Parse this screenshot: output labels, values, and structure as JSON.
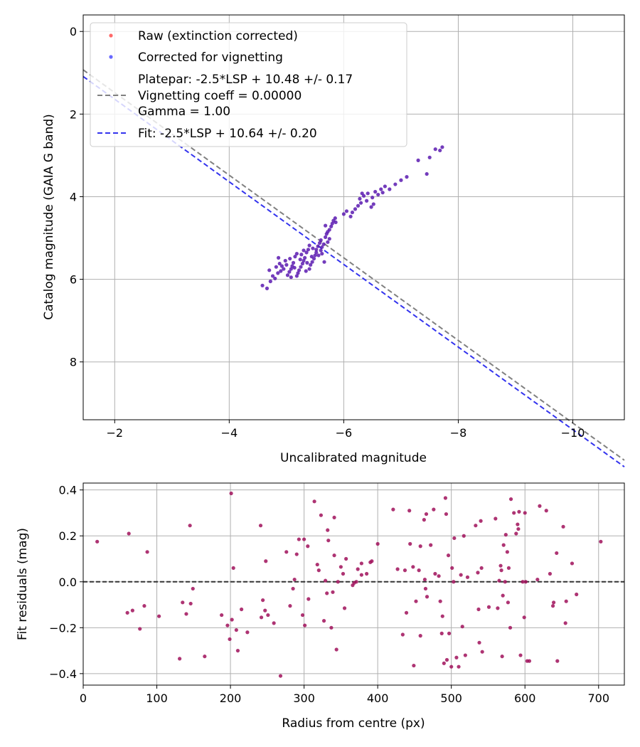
{
  "chart_data": [
    {
      "type": "scatter",
      "xlabel": "Uncalibrated magnitude",
      "ylabel": "Catalog magnitude (GAIA G band)",
      "xlim": [
        -1.45,
        -10.9
      ],
      "ylim": [
        9.4,
        -0.4
      ],
      "x_ticks": [
        -2,
        -4,
        -6,
        -8,
        -10
      ],
      "x_tick_labels": [
        "−2",
        "−4",
        "−6",
        "−8",
        "−10"
      ],
      "y_ticks": [
        0,
        2,
        4,
        6,
        8
      ],
      "y_tick_labels": [
        "0",
        "2",
        "4",
        "6",
        "8"
      ],
      "grid": true,
      "legend": {
        "placement": "top-left",
        "entries": [
          {
            "label": "Raw (extinction corrected)",
            "color": "#ff4d4d",
            "marker": "dot"
          },
          {
            "label": "Corrected for vignetting",
            "color": "#4d4dff",
            "marker": "dot"
          },
          {
            "label": [
              "Platepar: -2.5*LSP + 10.48 +/- 0.17",
              "Vignetting coeff = 0.00000",
              "Gamma = 1.00"
            ],
            "color": "#808080",
            "marker": "dashed-line"
          },
          {
            "label": "Fit: -2.5*LSP + 10.64 +/- 0.20",
            "color": "#3333ee",
            "marker": "dashed-line"
          }
        ]
      },
      "lines": [
        {
          "name": "platepar",
          "slope": -1,
          "intercept": -0.52,
          "color": "#808080"
        },
        {
          "name": "fit",
          "slope": -1,
          "intercept": -0.36,
          "color": "#3333ee"
        }
      ],
      "point_color": "#5a1ab0",
      "points": [
        [
          -4.66,
          6.22
        ],
        [
          -4.58,
          6.15
        ],
        [
          -4.72,
          6.05
        ],
        [
          -4.8,
          5.98
        ],
        [
          -4.76,
          5.92
        ],
        [
          -4.85,
          5.85
        ],
        [
          -4.9,
          5.8
        ],
        [
          -4.95,
          5.75
        ],
        [
          -4.82,
          5.7
        ],
        [
          -4.88,
          5.62
        ],
        [
          -4.98,
          5.55
        ],
        [
          -5.02,
          5.9
        ],
        [
          -5.05,
          5.82
        ],
        [
          -5.08,
          5.75
        ],
        [
          -5.1,
          5.68
        ],
        [
          -5.12,
          5.6
        ],
        [
          -5.06,
          5.5
        ],
        [
          -5.15,
          5.45
        ],
        [
          -5.18,
          5.38
        ],
        [
          -5.2,
          5.85
        ],
        [
          -5.22,
          5.78
        ],
        [
          -5.25,
          5.7
        ],
        [
          -5.28,
          5.62
        ],
        [
          -5.3,
          5.55
        ],
        [
          -5.32,
          5.48
        ],
        [
          -5.26,
          5.4
        ],
        [
          -5.35,
          5.35
        ],
        [
          -5.38,
          5.28
        ],
        [
          -5.4,
          5.75
        ],
        [
          -5.42,
          5.65
        ],
        [
          -5.45,
          5.58
        ],
        [
          -5.48,
          5.5
        ],
        [
          -5.5,
          5.42
        ],
        [
          -5.52,
          5.35
        ],
        [
          -5.46,
          5.25
        ],
        [
          -5.55,
          5.2
        ],
        [
          -5.58,
          5.12
        ],
        [
          -5.6,
          5.3
        ],
        [
          -5.62,
          5.22
        ],
        [
          -5.65,
          5.15
        ],
        [
          -5.6,
          5.05
        ],
        [
          -5.68,
          4.98
        ],
        [
          -5.7,
          4.9
        ],
        [
          -5.72,
          4.85
        ],
        [
          -5.75,
          4.8
        ],
        [
          -5.78,
          4.72
        ],
        [
          -5.8,
          4.65
        ],
        [
          -5.82,
          4.58
        ],
        [
          -5.68,
          4.7
        ],
        [
          -5.85,
          4.52
        ],
        [
          -6.0,
          4.42
        ],
        [
          -6.05,
          4.35
        ],
        [
          -6.12,
          4.48
        ],
        [
          -6.2,
          4.3
        ],
        [
          -6.25,
          4.22
        ],
        [
          -6.3,
          4.15
        ],
        [
          -6.28,
          4.05
        ],
        [
          -6.35,
          3.98
        ],
        [
          -6.4,
          4.1
        ],
        [
          -6.42,
          3.92
        ],
        [
          -6.48,
          4.25
        ],
        [
          -6.52,
          4.18
        ],
        [
          -6.55,
          3.88
        ],
        [
          -6.6,
          3.95
        ],
        [
          -6.65,
          3.82
        ],
        [
          -6.72,
          3.75
        ],
        [
          -6.8,
          3.82
        ],
        [
          -6.9,
          3.7
        ],
        [
          -7.0,
          3.6
        ],
        [
          -7.1,
          3.52
        ],
        [
          -7.3,
          3.12
        ],
        [
          -7.45,
          3.45
        ],
        [
          -7.5,
          3.05
        ],
        [
          -7.6,
          2.85
        ],
        [
          -7.68,
          2.88
        ],
        [
          -7.72,
          2.8
        ],
        [
          -5.0,
          5.65
        ],
        [
          -5.14,
          5.72
        ],
        [
          -5.36,
          5.6
        ],
        [
          -4.92,
          5.68
        ],
        [
          -5.44,
          5.45
        ],
        [
          -5.56,
          5.42
        ],
        [
          -5.24,
          5.52
        ],
        [
          -5.18,
          5.92
        ],
        [
          -5.34,
          5.8
        ],
        [
          -5.08,
          5.95
        ],
        [
          -4.7,
          5.78
        ],
        [
          -5.62,
          5.38
        ],
        [
          -5.72,
          5.1
        ],
        [
          -5.52,
          5.28
        ],
        [
          -5.4,
          5.18
        ],
        [
          -5.3,
          5.3
        ],
        [
          -4.86,
          5.48
        ],
        [
          -5.66,
          5.58
        ],
        [
          -5.75,
          5.02
        ],
        [
          -5.86,
          4.62
        ],
        [
          -6.15,
          4.38
        ],
        [
          -6.32,
          3.92
        ],
        [
          -6.5,
          4.02
        ],
        [
          -6.68,
          3.9
        ]
      ]
    },
    {
      "type": "scatter",
      "xlabel": "Radius from centre (px)",
      "ylabel": "Fit residuals (mag)",
      "xlim": [
        0,
        735
      ],
      "ylim": [
        -0.45,
        0.43
      ],
      "x_ticks": [
        0,
        100,
        200,
        300,
        400,
        500,
        600,
        700
      ],
      "x_tick_labels": [
        "0",
        "100",
        "200",
        "300",
        "400",
        "500",
        "600",
        "700"
      ],
      "y_ticks": [
        0.4,
        0.2,
        0.0,
        -0.2,
        -0.4
      ],
      "y_tick_labels": [
        "0.4",
        "0.2",
        "0.0",
        "−0.2",
        "−0.4"
      ],
      "grid": true,
      "reference_line": {
        "y": 0.0,
        "color": "#333333",
        "style": "dashed"
      },
      "point_color": "#a0105a",
      "points": [
        [
          19,
          0.175
        ],
        [
          60,
          -0.135
        ],
        [
          62,
          0.21
        ],
        [
          67,
          -0.125
        ],
        [
          77,
          -0.205
        ],
        [
          83,
          -0.105
        ],
        [
          87,
          0.13
        ],
        [
          103,
          -0.15
        ],
        [
          131,
          -0.335
        ],
        [
          135,
          -0.09
        ],
        [
          140,
          -0.14
        ],
        [
          145,
          0.245
        ],
        [
          146,
          -0.095
        ],
        [
          149,
          -0.03
        ],
        [
          165,
          -0.325
        ],
        [
          188,
          -0.145
        ],
        [
          196,
          -0.19
        ],
        [
          199,
          -0.25
        ],
        [
          201,
          0.385
        ],
        [
          202,
          -0.165
        ],
        [
          204,
          0.06
        ],
        [
          208,
          -0.21
        ],
        [
          210,
          -0.3
        ],
        [
          215,
          -0.12
        ],
        [
          223,
          -0.22
        ],
        [
          241,
          0.245
        ],
        [
          242,
          -0.155
        ],
        [
          244,
          -0.08
        ],
        [
          247,
          -0.125
        ],
        [
          248,
          0.09
        ],
        [
          251,
          -0.145
        ],
        [
          259,
          -0.18
        ],
        [
          268,
          -0.41
        ],
        [
          276,
          0.13
        ],
        [
          281,
          -0.105
        ],
        [
          285,
          -0.03
        ],
        [
          287,
          0.01
        ],
        [
          290,
          0.12
        ],
        [
          293,
          0.185
        ],
        [
          298,
          -0.145
        ],
        [
          300,
          0.185
        ],
        [
          301,
          -0.19
        ],
        [
          305,
          0.155
        ],
        [
          306,
          -0.075
        ],
        [
          314,
          0.35
        ],
        [
          318,
          0.075
        ],
        [
          320,
          0.05
        ],
        [
          323,
          0.29
        ],
        [
          327,
          -0.17
        ],
        [
          329,
          0.005
        ],
        [
          331,
          -0.05
        ],
        [
          332,
          0.225
        ],
        [
          333,
          0.18
        ],
        [
          337,
          -0.2
        ],
        [
          339,
          -0.045
        ],
        [
          341,
          0.28
        ],
        [
          341,
          0.115
        ],
        [
          344,
          -0.295
        ],
        [
          346,
          0.0
        ],
        [
          350,
          0.065
        ],
        [
          353,
          0.035
        ],
        [
          355,
          -0.115
        ],
        [
          357,
          0.1
        ],
        [
          366,
          -0.015
        ],
        [
          368,
          -0.005
        ],
        [
          371,
          0.0
        ],
        [
          373,
          0.055
        ],
        [
          378,
          0.08
        ],
        [
          378,
          0.03
        ],
        [
          385,
          0.035
        ],
        [
          390,
          0.085
        ],
        [
          392,
          0.09
        ],
        [
          400,
          0.165
        ],
        [
          421,
          0.315
        ],
        [
          427,
          0.055
        ],
        [
          434,
          -0.23
        ],
        [
          437,
          0.05
        ],
        [
          439,
          -0.135
        ],
        [
          443,
          0.31
        ],
        [
          444,
          0.165
        ],
        [
          448,
          0.065
        ],
        [
          449,
          -0.365
        ],
        [
          452,
          -0.085
        ],
        [
          456,
          0.05
        ],
        [
          458,
          -0.235
        ],
        [
          458,
          0.155
        ],
        [
          463,
          0.27
        ],
        [
          464,
          0.01
        ],
        [
          465,
          -0.03
        ],
        [
          466,
          0.295
        ],
        [
          467,
          -0.065
        ],
        [
          472,
          0.16
        ],
        [
          476,
          0.315
        ],
        [
          478,
          0.035
        ],
        [
          483,
          0.025
        ],
        [
          485,
          -0.085
        ],
        [
          487,
          -0.225
        ],
        [
          488,
          -0.15
        ],
        [
          490,
          -0.355
        ],
        [
          492,
          0.365
        ],
        [
          493,
          0.295
        ],
        [
          494,
          -0.34
        ],
        [
          496,
          0.115
        ],
        [
          497,
          -0.225
        ],
        [
          500,
          -0.37
        ],
        [
          501,
          0.06
        ],
        [
          503,
          0.0
        ],
        [
          504,
          0.19
        ],
        [
          507,
          -0.33
        ],
        [
          510,
          -0.37
        ],
        [
          513,
          0.03
        ],
        [
          515,
          -0.195
        ],
        [
          517,
          0.2
        ],
        [
          519,
          -0.32
        ],
        [
          522,
          0.02
        ],
        [
          533,
          0.245
        ],
        [
          536,
          0.04
        ],
        [
          537,
          -0.12
        ],
        [
          538,
          -0.265
        ],
        [
          540,
          0.265
        ],
        [
          541,
          0.06
        ],
        [
          542,
          -0.305
        ],
        [
          551,
          -0.11
        ],
        [
          560,
          0.275
        ],
        [
          563,
          -0.115
        ],
        [
          565,
          0.005
        ],
        [
          567,
          0.07
        ],
        [
          568,
          0.05
        ],
        [
          569,
          -0.325
        ],
        [
          570,
          -0.06
        ],
        [
          571,
          0.16
        ],
        [
          573,
          0.0
        ],
        [
          574,
          0.205
        ],
        [
          576,
          0.13
        ],
        [
          577,
          -0.09
        ],
        [
          578,
          0.06
        ],
        [
          580,
          -0.2
        ],
        [
          581,
          0.36
        ],
        [
          585,
          0.3
        ],
        [
          588,
          0.21
        ],
        [
          590,
          0.25
        ],
        [
          591,
          0.23
        ],
        [
          592,
          0.305
        ],
        [
          594,
          -0.32
        ],
        [
          597,
          0.0
        ],
        [
          599,
          -0.155
        ],
        [
          600,
          0.3
        ],
        [
          601,
          0.0
        ],
        [
          603,
          -0.345
        ],
        [
          606,
          -0.345
        ],
        [
          617,
          0.01
        ],
        [
          620,
          0.33
        ],
        [
          629,
          0.31
        ],
        [
          634,
          0.035
        ],
        [
          638,
          -0.105
        ],
        [
          639,
          -0.09
        ],
        [
          643,
          0.125
        ],
        [
          644,
          -0.345
        ],
        [
          652,
          0.24
        ],
        [
          655,
          -0.18
        ],
        [
          656,
          -0.085
        ],
        [
          664,
          0.08
        ],
        [
          670,
          -0.055
        ],
        [
          703,
          0.175
        ]
      ]
    }
  ]
}
